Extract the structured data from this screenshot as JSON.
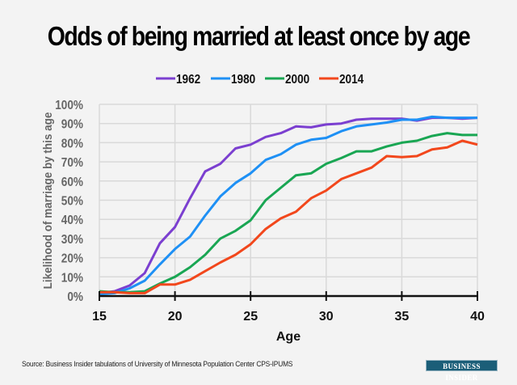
{
  "chart_data": {
    "type": "line",
    "title": "Odds of being married at least once by age",
    "xlabel": "Age",
    "ylabel": "Likelihood of marriage by this age",
    "x": [
      15,
      16,
      17,
      18,
      19,
      20,
      21,
      22,
      23,
      24,
      25,
      26,
      27,
      28,
      29,
      30,
      31,
      32,
      33,
      34,
      35,
      36,
      37,
      38,
      39,
      40
    ],
    "xlim": [
      15,
      40
    ],
    "ylim": [
      0,
      100
    ],
    "x_ticks": [
      15,
      20,
      25,
      30,
      35,
      40
    ],
    "x_tick_labels": [
      "15",
      "20",
      "25",
      "30",
      "35",
      "40"
    ],
    "y_ticks": [
      0,
      10,
      20,
      30,
      40,
      50,
      60,
      70,
      80,
      90,
      100
    ],
    "y_tick_labels": [
      "0%",
      "10%",
      "20%",
      "30%",
      "40%",
      "50%",
      "60%",
      "70%",
      "80%",
      "90%",
      "100%"
    ],
    "grid": true,
    "legend_position": "top-center",
    "series": [
      {
        "name": "1962",
        "color": "#7b3fd0",
        "values": [
          1.5,
          2.5,
          5.5,
          12,
          27.5,
          36,
          51,
          65,
          69,
          77,
          79,
          83,
          85,
          88.5,
          88,
          89.5,
          90,
          92,
          92.5,
          92.5,
          92.5,
          91.5,
          93,
          93,
          92.5,
          93
        ]
      },
      {
        "name": "1980",
        "color": "#1e90f5",
        "values": [
          1,
          1.5,
          4,
          8,
          16.5,
          24.5,
          31,
          42,
          52,
          59,
          64,
          71,
          74,
          79,
          81.5,
          82.5,
          86,
          88.5,
          89.5,
          90.5,
          92,
          92,
          93.5,
          93,
          93,
          93
        ]
      },
      {
        "name": "2000",
        "color": "#19a653",
        "values": [
          2.5,
          2,
          2,
          2.5,
          6.5,
          10,
          15,
          21.5,
          30,
          34,
          39.5,
          50,
          56.5,
          63,
          64,
          69,
          72,
          75.5,
          75.5,
          78,
          80,
          81,
          83.5,
          85,
          84,
          84
        ]
      },
      {
        "name": "2014",
        "color": "#f2471c",
        "values": [
          2,
          2,
          1.5,
          1.5,
          6,
          6,
          8.5,
          13,
          17.5,
          21.5,
          27,
          35,
          40.5,
          44,
          51,
          55,
          61,
          64,
          67,
          73,
          72.5,
          73,
          76.5,
          77.5,
          81,
          79
        ]
      }
    ]
  },
  "footer": {
    "source": "Source: Business Insider tabulations of University of Minnesota Population Center CPS-IPUMS",
    "logo": "BUSINESS INSIDER"
  }
}
